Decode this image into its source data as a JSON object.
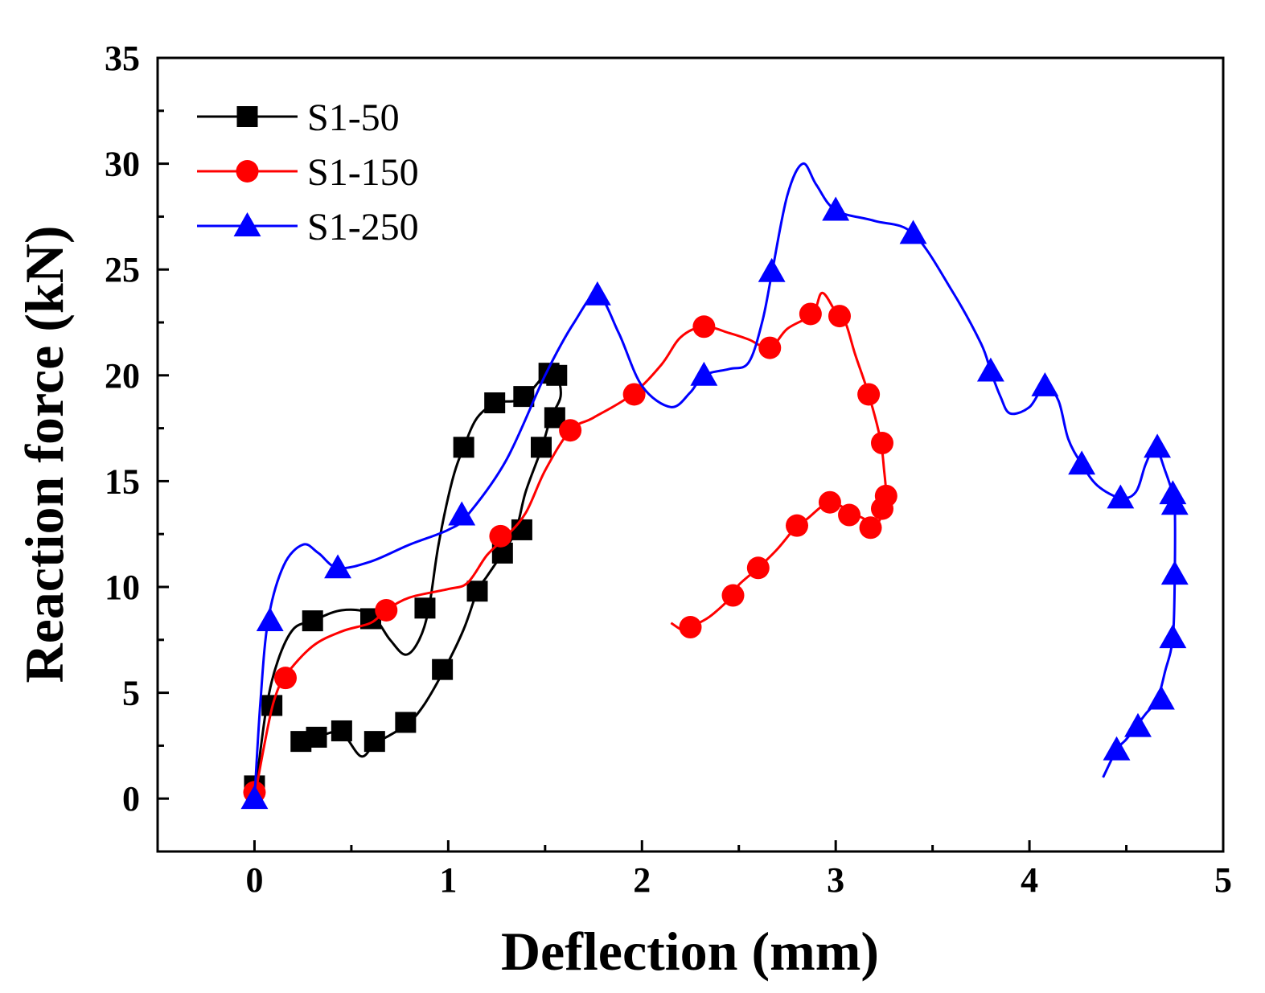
{
  "chart_data": {
    "type": "line",
    "title": "",
    "xlabel": "Deflection (mm)",
    "ylabel": "Reaction force (kN)",
    "xlim": [
      -0.5,
      5
    ],
    "ylim": [
      -2.5,
      35
    ],
    "xticks": [
      0,
      1,
      2,
      3,
      4,
      5
    ],
    "xtick_labels": [
      "0",
      "1",
      "2",
      "3",
      "4",
      "5"
    ],
    "yticks": [
      0,
      5,
      10,
      15,
      20,
      25,
      30,
      35
    ],
    "ytick_labels": [
      "0",
      "5",
      "10",
      "15",
      "20",
      "25",
      "30",
      "35"
    ],
    "grid": false,
    "legend": "top-left",
    "series": [
      {
        "name": "S1-50",
        "color": "#000000",
        "marker": "square",
        "line": [
          [
            0,
            0
          ],
          [
            0.06,
            4.2
          ],
          [
            0.12,
            6.5
          ],
          [
            0.2,
            8.0
          ],
          [
            0.3,
            8.4
          ],
          [
            0.45,
            8.9
          ],
          [
            0.6,
            8.7
          ],
          [
            0.7,
            7.5
          ],
          [
            0.78,
            6.8
          ],
          [
            0.85,
            7.5
          ],
          [
            0.9,
            9.0
          ],
          [
            0.95,
            12.0
          ],
          [
            1.02,
            15.0
          ],
          [
            1.08,
            16.6
          ],
          [
            1.15,
            18.0
          ],
          [
            1.25,
            18.7
          ],
          [
            1.35,
            18.8
          ],
          [
            1.42,
            19.2
          ],
          [
            1.5,
            20.0
          ],
          [
            1.56,
            20.0
          ],
          [
            1.58,
            19.0
          ],
          [
            1.53,
            18.0
          ],
          [
            1.48,
            16.5
          ],
          [
            1.4,
            14.5
          ],
          [
            1.35,
            12.7
          ],
          [
            1.28,
            11.6
          ],
          [
            1.2,
            10.5
          ],
          [
            1.15,
            9.8
          ],
          [
            1.08,
            8.0
          ],
          [
            0.98,
            6.1
          ],
          [
            0.88,
            4.5
          ],
          [
            0.8,
            3.6
          ],
          [
            0.7,
            3.0
          ],
          [
            0.62,
            2.6
          ],
          [
            0.55,
            2.0
          ],
          [
            0.45,
            3.1
          ],
          [
            0.35,
            3.0
          ],
          [
            0.25,
            2.7
          ],
          [
            0.2,
            2.6
          ]
        ],
        "markers": [
          [
            0,
            0.6
          ],
          [
            0.09,
            4.4
          ],
          [
            0.3,
            8.4
          ],
          [
            0.6,
            8.5
          ],
          [
            0.88,
            9.0
          ],
          [
            0.97,
            6.1
          ],
          [
            1.08,
            16.6
          ],
          [
            1.15,
            9.8
          ],
          [
            1.24,
            18.7
          ],
          [
            1.28,
            11.6
          ],
          [
            1.39,
            19.0
          ],
          [
            1.38,
            12.7
          ],
          [
            1.48,
            16.6
          ],
          [
            1.52,
            20.1
          ],
          [
            1.56,
            20.0
          ],
          [
            1.55,
            18.0
          ],
          [
            0.78,
            3.6
          ],
          [
            0.62,
            2.7
          ],
          [
            0.45,
            3.2
          ],
          [
            0.32,
            2.9
          ],
          [
            0.24,
            2.7
          ]
        ]
      },
      {
        "name": "S1-150",
        "color": "#ff0000",
        "marker": "circle",
        "line": [
          [
            0,
            0
          ],
          [
            0.05,
            2.5
          ],
          [
            0.1,
            4.6
          ],
          [
            0.16,
            5.8
          ],
          [
            0.3,
            7.2
          ],
          [
            0.45,
            7.9
          ],
          [
            0.6,
            8.3
          ],
          [
            0.68,
            8.9
          ],
          [
            0.8,
            9.5
          ],
          [
            1.0,
            9.9
          ],
          [
            1.1,
            10.2
          ],
          [
            1.2,
            11.5
          ],
          [
            1.3,
            12.4
          ],
          [
            1.4,
            13.5
          ],
          [
            1.5,
            15.5
          ],
          [
            1.63,
            17.4
          ],
          [
            1.75,
            18.0
          ],
          [
            1.95,
            19.1
          ],
          [
            2.1,
            20.5
          ],
          [
            2.2,
            21.8
          ],
          [
            2.32,
            22.3
          ],
          [
            2.45,
            22.0
          ],
          [
            2.55,
            21.7
          ],
          [
            2.66,
            21.3
          ],
          [
            2.75,
            22.2
          ],
          [
            2.88,
            22.9
          ],
          [
            2.93,
            23.9
          ],
          [
            3.0,
            23.0
          ],
          [
            3.05,
            22.5
          ],
          [
            3.1,
            21.0
          ],
          [
            3.17,
            19.1
          ],
          [
            3.23,
            17.0
          ],
          [
            3.25,
            15.5
          ],
          [
            3.26,
            14.4
          ],
          [
            3.25,
            13.7
          ],
          [
            3.2,
            12.8
          ],
          [
            3.15,
            13.2
          ],
          [
            3.08,
            13.5
          ],
          [
            2.97,
            14.0
          ],
          [
            2.85,
            13.2
          ],
          [
            2.8,
            12.9
          ],
          [
            2.7,
            11.8
          ],
          [
            2.6,
            10.9
          ],
          [
            2.5,
            10.1
          ],
          [
            2.47,
            9.6
          ],
          [
            2.35,
            8.6
          ],
          [
            2.25,
            8.1
          ],
          [
            2.22,
            7.9
          ],
          [
            2.15,
            8.3
          ]
        ],
        "markers": [
          [
            0,
            0.3
          ],
          [
            0.16,
            5.7
          ],
          [
            0.68,
            8.9
          ],
          [
            1.27,
            12.4
          ],
          [
            1.63,
            17.4
          ],
          [
            1.96,
            19.1
          ],
          [
            2.32,
            22.3
          ],
          [
            2.66,
            21.3
          ],
          [
            2.87,
            22.9
          ],
          [
            3.02,
            22.8
          ],
          [
            3.17,
            19.1
          ],
          [
            3.24,
            16.8
          ],
          [
            3.26,
            14.3
          ],
          [
            3.24,
            13.7
          ],
          [
            3.18,
            12.8
          ],
          [
            3.07,
            13.4
          ],
          [
            2.97,
            14.0
          ],
          [
            2.8,
            12.9
          ],
          [
            2.6,
            10.9
          ],
          [
            2.47,
            9.6
          ],
          [
            2.25,
            8.1
          ]
        ]
      },
      {
        "name": "S1-250",
        "color": "#0000ff",
        "marker": "triangle",
        "line": [
          [
            0,
            0
          ],
          [
            0.03,
            4.5
          ],
          [
            0.07,
            8.4
          ],
          [
            0.15,
            11.0
          ],
          [
            0.25,
            12.0
          ],
          [
            0.33,
            11.6
          ],
          [
            0.43,
            10.9
          ],
          [
            0.6,
            11.2
          ],
          [
            0.8,
            12.0
          ],
          [
            1.0,
            12.7
          ],
          [
            1.1,
            13.4
          ],
          [
            1.3,
            16.0
          ],
          [
            1.5,
            20.0
          ],
          [
            1.65,
            22.5
          ],
          [
            1.77,
            23.8
          ],
          [
            1.88,
            22.0
          ],
          [
            2.0,
            19.5
          ],
          [
            2.15,
            18.5
          ],
          [
            2.25,
            19.2
          ],
          [
            2.32,
            20.0
          ],
          [
            2.45,
            20.3
          ],
          [
            2.55,
            20.6
          ],
          [
            2.62,
            22.5
          ],
          [
            2.67,
            24.8
          ],
          [
            2.75,
            28.5
          ],
          [
            2.83,
            30.0
          ],
          [
            2.9,
            29.0
          ],
          [
            3.0,
            27.8
          ],
          [
            3.2,
            27.3
          ],
          [
            3.4,
            26.7
          ],
          [
            3.6,
            24.0
          ],
          [
            3.75,
            21.5
          ],
          [
            3.8,
            20.2
          ],
          [
            3.85,
            19.0
          ],
          [
            3.9,
            18.2
          ],
          [
            4.0,
            18.5
          ],
          [
            4.08,
            19.5
          ],
          [
            4.15,
            18.8
          ],
          [
            4.2,
            17.0
          ],
          [
            4.27,
            15.8
          ],
          [
            4.35,
            14.8
          ],
          [
            4.47,
            14.2
          ],
          [
            4.55,
            14.5
          ],
          [
            4.6,
            15.8
          ],
          [
            4.65,
            16.6
          ],
          [
            4.7,
            15.5
          ],
          [
            4.74,
            14.4
          ],
          [
            4.75,
            13.9
          ],
          [
            4.75,
            10.6
          ],
          [
            4.74,
            7.6
          ],
          [
            4.7,
            6.0
          ],
          [
            4.66,
            4.7
          ],
          [
            4.6,
            4.0
          ],
          [
            4.55,
            3.4
          ],
          [
            4.5,
            2.8
          ],
          [
            4.45,
            2.3
          ],
          [
            4.38,
            1.0
          ]
        ],
        "markers": [
          [
            0,
            0
          ],
          [
            0.08,
            8.4
          ],
          [
            0.43,
            10.9
          ],
          [
            1.07,
            13.4
          ],
          [
            1.77,
            23.8
          ],
          [
            2.32,
            20.0
          ],
          [
            2.67,
            24.9
          ],
          [
            3.0,
            27.8
          ],
          [
            3.4,
            26.7
          ],
          [
            3.8,
            20.2
          ],
          [
            4.08,
            19.5
          ],
          [
            4.27,
            15.8
          ],
          [
            4.47,
            14.2
          ],
          [
            4.66,
            16.6
          ],
          [
            4.74,
            14.4
          ],
          [
            4.75,
            13.9
          ],
          [
            4.75,
            10.6
          ],
          [
            4.74,
            7.6
          ],
          [
            4.68,
            4.7
          ],
          [
            4.56,
            3.4
          ],
          [
            4.45,
            2.3
          ]
        ]
      }
    ]
  }
}
